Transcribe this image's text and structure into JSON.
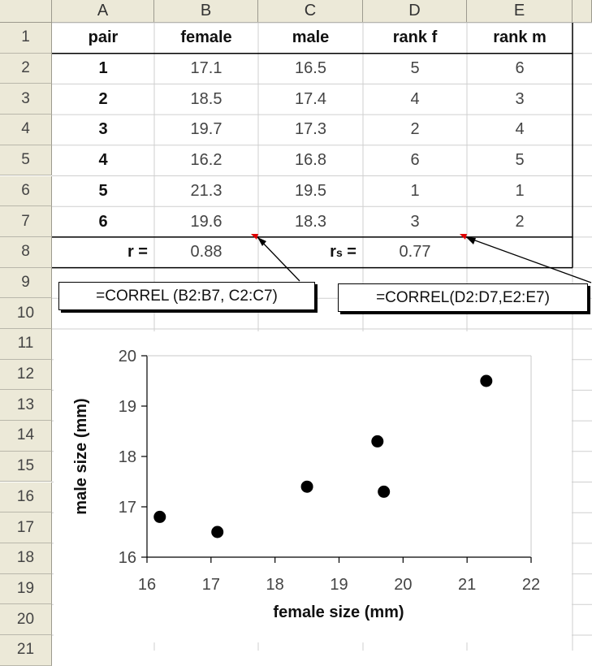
{
  "columns": [
    "A",
    "B",
    "C",
    "D",
    "E"
  ],
  "rows": [
    "1",
    "2",
    "3",
    "4",
    "5",
    "6",
    "7",
    "8",
    "9",
    "10",
    "11",
    "12",
    "13",
    "14",
    "15",
    "16",
    "17",
    "18",
    "19",
    "20",
    "21"
  ],
  "table": {
    "headers": [
      "pair",
      "female",
      "male",
      "rank f",
      "rank m"
    ],
    "rows": [
      [
        "1",
        "17.1",
        "16.5",
        "5",
        "6"
      ],
      [
        "2",
        "18.5",
        "17.4",
        "4",
        "3"
      ],
      [
        "3",
        "19.7",
        "17.3",
        "2",
        "4"
      ],
      [
        "4",
        "16.2",
        "16.8",
        "6",
        "5"
      ],
      [
        "5",
        "21.3",
        "19.5",
        "1",
        "1"
      ],
      [
        "6",
        "19.6",
        "18.3",
        "3",
        "2"
      ]
    ],
    "r_label": "r =",
    "r_value": "0.88",
    "rs_label_main": "r",
    "rs_label_sub": "s",
    "rs_label_eq": " =",
    "rs_value": "0.77"
  },
  "callouts": {
    "pearson": "=CORREL (B2:B7, C2:C7)",
    "spearman": "=CORREL(D2:D7,E2:E7)"
  },
  "colors": {
    "header_bg": "#ece9d8",
    "grid": "#c8c8c8",
    "marker": "#000000"
  },
  "chart_data": {
    "type": "scatter",
    "x": [
      17.1,
      18.5,
      19.7,
      16.2,
      21.3,
      19.6
    ],
    "y": [
      16.5,
      17.4,
      17.3,
      16.8,
      19.5,
      18.3
    ],
    "xlabel": "female size (mm)",
    "ylabel": "male size (mm)",
    "xlim": [
      16,
      22
    ],
    "ylim": [
      16,
      20
    ],
    "xticks": [
      "16",
      "17",
      "18",
      "19",
      "20",
      "21",
      "22"
    ],
    "yticks": [
      "16",
      "17",
      "18",
      "19",
      "20"
    ],
    "grid": false,
    "legend": "none"
  }
}
